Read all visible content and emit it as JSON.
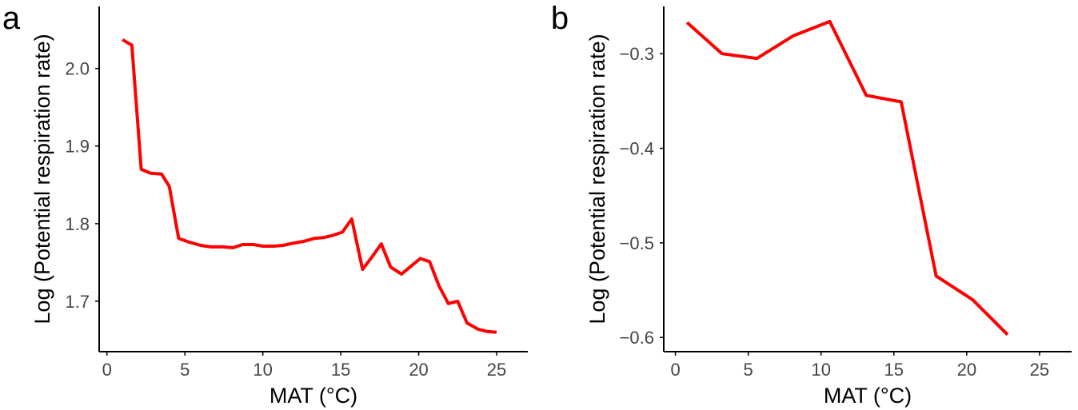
{
  "chart_data": [
    {
      "panel_label": "a",
      "type": "line",
      "title": "",
      "xlabel": "MAT (°C)",
      "ylabel": "Log (Potential respiration rate)",
      "xlim": [
        -0.5,
        27
      ],
      "ylim": [
        1.635,
        2.08
      ],
      "xticks": [
        0,
        5,
        10,
        15,
        20,
        25
      ],
      "yticks": [
        1.7,
        1.8,
        1.9,
        2.0
      ],
      "ytick_labels": [
        "1.7",
        "1.8",
        "1.9",
        "2.0"
      ],
      "grid": false,
      "color": "#ff0000",
      "series": [
        {
          "x": [
            1.0,
            1.6,
            2.2,
            2.8,
            3.5,
            4.0,
            4.6,
            5.3,
            6.0,
            6.7,
            7.4,
            8.1,
            8.7,
            9.4,
            10.0,
            10.7,
            11.3,
            12.0,
            12.6,
            13.3,
            13.9,
            14.5,
            15.1,
            15.7,
            16.4,
            17.0,
            17.6,
            18.2,
            18.9,
            19.5,
            20.1,
            20.7,
            21.3,
            21.9,
            22.5,
            23.1,
            23.8,
            24.4,
            25.0
          ],
          "y": [
            2.037,
            2.03,
            1.87,
            1.865,
            1.864,
            1.848,
            1.781,
            1.776,
            1.772,
            1.77,
            1.77,
            1.769,
            1.773,
            1.773,
            1.771,
            1.771,
            1.772,
            1.775,
            1.777,
            1.781,
            1.782,
            1.785,
            1.789,
            1.806,
            1.741,
            1.757,
            1.774,
            1.744,
            1.735,
            1.745,
            1.755,
            1.751,
            1.72,
            1.697,
            1.7,
            1.672,
            1.664,
            1.661,
            1.66
          ]
        }
      ]
    },
    {
      "panel_label": "b",
      "type": "line",
      "title": "",
      "xlabel": "MAT (°C)",
      "ylabel": "Log (Potential respiration rate)",
      "xlim": [
        -0.8,
        27.2
      ],
      "ylim": [
        -0.615,
        -0.25
      ],
      "xticks": [
        0,
        5,
        10,
        15,
        20,
        25
      ],
      "yticks": [
        -0.6,
        -0.5,
        -0.4,
        -0.3
      ],
      "ytick_labels": [
        "−0.6",
        "−0.5",
        "−0.4",
        "−0.3"
      ],
      "grid": false,
      "color": "#ff0000",
      "series": [
        {
          "x": [
            0.8,
            3.2,
            5.6,
            8.1,
            10.6,
            13.1,
            15.5,
            17.9,
            20.4,
            22.8
          ],
          "y": [
            -0.267,
            -0.3,
            -0.305,
            -0.281,
            -0.266,
            -0.344,
            -0.351,
            -0.535,
            -0.56,
            -0.597
          ]
        }
      ]
    }
  ]
}
